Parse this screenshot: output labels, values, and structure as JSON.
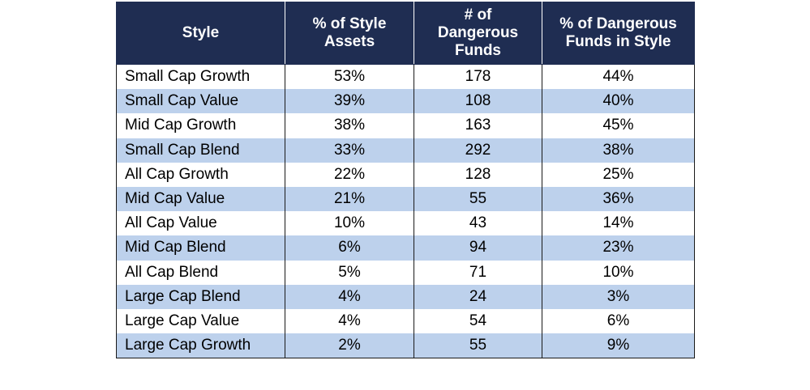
{
  "chart_data": {
    "type": "table",
    "columns": [
      [
        "Style"
      ],
      [
        "% of Style",
        "Assets"
      ],
      [
        "# of",
        "Dangerous",
        "Funds"
      ],
      [
        "% of Dangerous",
        "Funds in Style"
      ]
    ],
    "rows": [
      {
        "style": "Small Cap Growth",
        "pct_style_assets": "53%",
        "dangerous_funds": "178",
        "pct_dangerous_in_style": "44%"
      },
      {
        "style": "Small Cap Value",
        "pct_style_assets": "39%",
        "dangerous_funds": "108",
        "pct_dangerous_in_style": "40%"
      },
      {
        "style": "Mid Cap Growth",
        "pct_style_assets": "38%",
        "dangerous_funds": "163",
        "pct_dangerous_in_style": "45%"
      },
      {
        "style": "Small Cap Blend",
        "pct_style_assets": "33%",
        "dangerous_funds": "292",
        "pct_dangerous_in_style": "38%"
      },
      {
        "style": "All Cap Growth",
        "pct_style_assets": "22%",
        "dangerous_funds": "128",
        "pct_dangerous_in_style": "25%"
      },
      {
        "style": "Mid Cap Value",
        "pct_style_assets": "21%",
        "dangerous_funds": "55",
        "pct_dangerous_in_style": "36%"
      },
      {
        "style": "All Cap Value",
        "pct_style_assets": "10%",
        "dangerous_funds": "43",
        "pct_dangerous_in_style": "14%"
      },
      {
        "style": "Mid Cap Blend",
        "pct_style_assets": "6%",
        "dangerous_funds": "94",
        "pct_dangerous_in_style": "23%"
      },
      {
        "style": "All Cap Blend",
        "pct_style_assets": "5%",
        "dangerous_funds": "71",
        "pct_dangerous_in_style": "10%"
      },
      {
        "style": "Large Cap Blend",
        "pct_style_assets": "4%",
        "dangerous_funds": "24",
        "pct_dangerous_in_style": "3%"
      },
      {
        "style": "Large Cap Value",
        "pct_style_assets": "4%",
        "dangerous_funds": "54",
        "pct_dangerous_in_style": "6%"
      },
      {
        "style": "Large Cap Growth",
        "pct_style_assets": "2%",
        "dangerous_funds": "55",
        "pct_dangerous_in_style": "9%"
      }
    ],
    "colors": {
      "header_background": "#1f2d52",
      "header_text": "#ffffff",
      "band_row_background": "#bdd1ec",
      "plain_row_background": "#ffffff"
    }
  }
}
